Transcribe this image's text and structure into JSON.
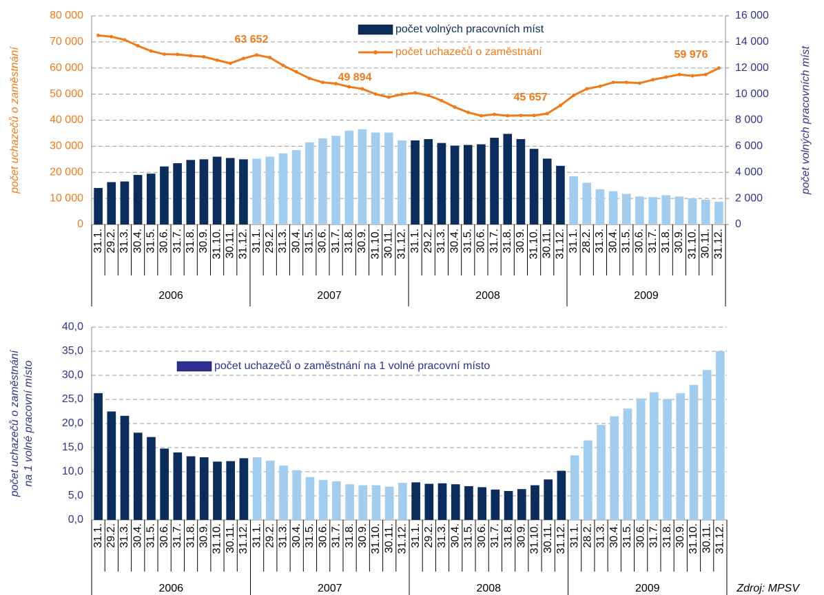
{
  "chart_data": [
    {
      "type": "combo",
      "categories": [
        "31.1.",
        "29.2.",
        "31.3.",
        "30.4.",
        "31.5.",
        "30.6.",
        "31.7.",
        "31.8.",
        "30.9.",
        "31.10.",
        "30.11.",
        "31.12.",
        "31.1.",
        "29.2.",
        "31.3.",
        "30.4.",
        "31.5.",
        "30.6.",
        "31.7.",
        "31.8.",
        "30.9.",
        "31.10.",
        "30.11.",
        "31.12.",
        "31.1.",
        "29.2.",
        "31.3.",
        "30.4.",
        "31.5.",
        "30.6.",
        "31.7.",
        "31.8.",
        "30.9.",
        "31.10.",
        "30.11.",
        "31.12.",
        "31.1.",
        "28.2.",
        "31.3.",
        "30.4.",
        "31.5.",
        "30.6.",
        "31.7.",
        "31.8.",
        "30.9.",
        "31.10.",
        "30.11.",
        "31.12."
      ],
      "groups": [
        {
          "label": "2006",
          "color": "#0c2d5c"
        },
        {
          "label": "2007",
          "color": "#a3cdee"
        },
        {
          "label": "2008",
          "color": "#0c2d5c"
        },
        {
          "label": "2009",
          "color": "#a3cdee"
        }
      ],
      "ylabel": "počet uchazečů o zaměstnání",
      "y2label": "počet volných pracovních míst",
      "series": [
        {
          "name": "počet volných pracovních míst",
          "kind": "bar",
          "axis": "y2",
          "color": "#0c2d5c",
          "values": [
            2800,
            3250,
            3300,
            3800,
            3900,
            4450,
            4700,
            4950,
            5000,
            5200,
            5100,
            5000,
            5050,
            5200,
            5450,
            5700,
            6300,
            6600,
            6800,
            7200,
            7300,
            7050,
            7050,
            6450,
            6450,
            6550,
            6250,
            6050,
            6100,
            6150,
            6650,
            6950,
            6550,
            5800,
            5050,
            4500,
            3700,
            3200,
            2700,
            2550,
            2350,
            2150,
            2100,
            2250,
            2150,
            2000,
            1900,
            1750
          ]
        },
        {
          "name": "počet uchazečů o zaměstnání",
          "kind": "line",
          "color": "#f07a1a",
          "values": [
            72500,
            72000,
            70800,
            68500,
            66500,
            65300,
            65200,
            64700,
            64300,
            63000,
            61800,
            63652,
            65000,
            64000,
            61000,
            58500,
            56000,
            54500,
            54000,
            52800,
            52000,
            50000,
            48800,
            49894,
            50500,
            49500,
            47500,
            45000,
            43000,
            41700,
            42200,
            41700,
            41800,
            41800,
            42500,
            45657,
            49500,
            52000,
            53000,
            54500,
            54500,
            54200,
            55500,
            56500,
            57500,
            57000,
            57500,
            59976
          ]
        }
      ],
      "annotations": [
        "63 652",
        "49 894",
        "45 657",
        "59 976"
      ],
      "ylim": [
        0,
        80000
      ],
      "yticks": [
        0,
        {
          "value": 10000,
          "label": "10 000"
        },
        {
          "value": 20000,
          "label": "20 000"
        },
        {
          "value": 30000,
          "label": "30 000"
        },
        {
          "value": 40000,
          "label": "40 000"
        },
        {
          "value": 50000,
          "label": "50 000"
        },
        {
          "value": 60000,
          "label": "60 000"
        },
        {
          "value": 70000,
          "label": "70 000"
        },
        {
          "value": 80000,
          "label": "80 000"
        }
      ],
      "y2lim": [
        0,
        16000
      ],
      "y2ticks": [
        0,
        {
          "value": 2000,
          "label": "2 000"
        },
        {
          "value": 4000,
          "label": "4 000"
        },
        {
          "value": 6000,
          "label": "6 000"
        },
        {
          "value": 8000,
          "label": "8 000"
        },
        {
          "value": 10000,
          "label": "10 000"
        },
        {
          "value": 12000,
          "label": "12 000"
        },
        {
          "value": 14000,
          "label": "14 000"
        },
        {
          "value": 16000,
          "label": "16 000"
        }
      ],
      "grid": true
    },
    {
      "type": "bar",
      "categories": [
        "31.1.",
        "29.2.",
        "31.3.",
        "30.4.",
        "31.5.",
        "30.6.",
        "31.7.",
        "31.8.",
        "30.9.",
        "31.10.",
        "30.11.",
        "31.12.",
        "31.1.",
        "29.2.",
        "31.3.",
        "30.4.",
        "31.5.",
        "30.6.",
        "31.7.",
        "31.8.",
        "30.9.",
        "31.10.",
        "30.11.",
        "31.12.",
        "31.1.",
        "29.2.",
        "31.3.",
        "30.4.",
        "31.5.",
        "30.6.",
        "31.7.",
        "31.8.",
        "30.9.",
        "31.10.",
        "30.11.",
        "31.12.",
        "31.1.",
        "28.2.",
        "31.3.",
        "30.4.",
        "31.5.",
        "30.6.",
        "31.7.",
        "31.8.",
        "30.9.",
        "31.10.",
        "30.11.",
        "31.12."
      ],
      "groups": [
        {
          "label": "2006",
          "color": "#0c2d5c"
        },
        {
          "label": "2007",
          "color": "#a3cdee"
        },
        {
          "label": "2008",
          "color": "#0c2d5c"
        },
        {
          "label": "2009",
          "color": "#a3cdee"
        }
      ],
      "ylabel": [
        "počet uchazečů o zaměstnání",
        "na 1 volné pracovní místo"
      ],
      "series": [
        {
          "name": "počet uchazečů o zaměstnání na 1 volné pracovní místo",
          "kind": "bar",
          "color": "#2e3192",
          "values": [
            26.3,
            22.5,
            21.6,
            18.1,
            17.2,
            14.8,
            14.0,
            13.2,
            13.0,
            12.1,
            12.2,
            12.8,
            13.0,
            12.3,
            11.3,
            10.3,
            8.9,
            8.3,
            8.0,
            7.4,
            7.2,
            7.2,
            6.9,
            7.7,
            7.8,
            7.5,
            7.6,
            7.4,
            7.0,
            6.8,
            6.3,
            6.0,
            6.4,
            7.2,
            8.4,
            10.2,
            13.4,
            16.5,
            19.7,
            21.5,
            23.1,
            25.2,
            26.5,
            25.1,
            26.3,
            28.0,
            31.1,
            35.0
          ]
        }
      ],
      "ylim": [
        0,
        40
      ],
      "yticks": [
        {
          "value": 0,
          "label": "0,0"
        },
        {
          "value": 5,
          "label": "5,0"
        },
        {
          "value": 10,
          "label": "10,0"
        },
        {
          "value": 15,
          "label": "15,0"
        },
        {
          "value": 20,
          "label": "20,0"
        },
        {
          "value": 25,
          "label": "25,0"
        },
        {
          "value": 30,
          "label": "30,0"
        },
        {
          "value": 35,
          "label": "35,0"
        },
        {
          "value": 40,
          "label": "40,0"
        }
      ],
      "grid": true
    }
  ],
  "source": "Zdroj: MPSV"
}
